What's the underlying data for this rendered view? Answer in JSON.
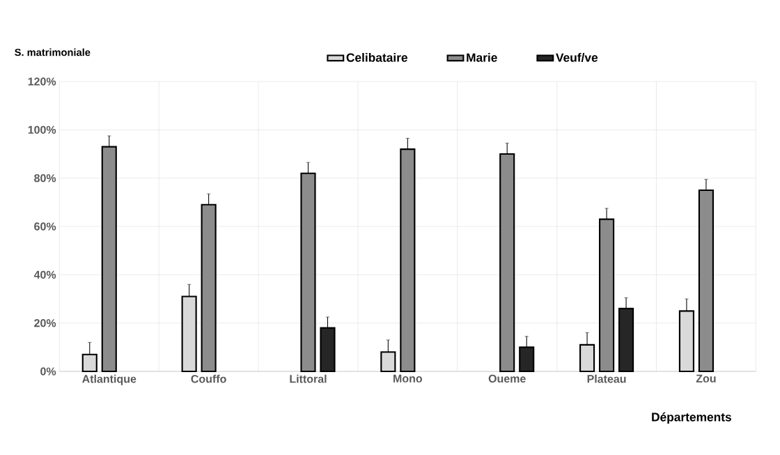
{
  "chart_data": {
    "type": "bar",
    "xlabel": "Départements",
    "legend_title": "S. matrimoniale",
    "categories": [
      "Atlantique",
      "Couffo",
      "Littoral",
      "Mono",
      "Oueme",
      "Plateau",
      "Zou"
    ],
    "series": [
      {
        "name": "Celibataire",
        "color": "#d9d9d9",
        "values": [
          7,
          31,
          null,
          8,
          null,
          11,
          25
        ],
        "errors": [
          5,
          5,
          null,
          5,
          null,
          5,
          5
        ]
      },
      {
        "name": "Marie",
        "color": "#8c8c8c",
        "values": [
          93,
          69,
          82,
          92,
          90,
          63,
          75
        ],
        "errors": [
          4.5,
          4.5,
          4.5,
          4.5,
          4.5,
          4.5,
          4.5
        ]
      },
      {
        "name": "Veuf/ve",
        "color": "#262626",
        "values": [
          null,
          null,
          18,
          null,
          10,
          26,
          null
        ],
        "errors": [
          null,
          null,
          4.5,
          null,
          4.5,
          4.5,
          null
        ]
      }
    ],
    "ylim": [
      0,
      120
    ],
    "yticks": [
      {
        "value": 0,
        "label": "0%"
      },
      {
        "value": 20,
        "label": "20%"
      },
      {
        "value": 40,
        "label": "40%"
      },
      {
        "value": 60,
        "label": "60%"
      },
      {
        "value": 80,
        "label": "80%"
      },
      {
        "value": 100,
        "label": "100%"
      },
      {
        "value": 120,
        "label": "120%"
      }
    ],
    "grid": true,
    "legend": "top"
  }
}
